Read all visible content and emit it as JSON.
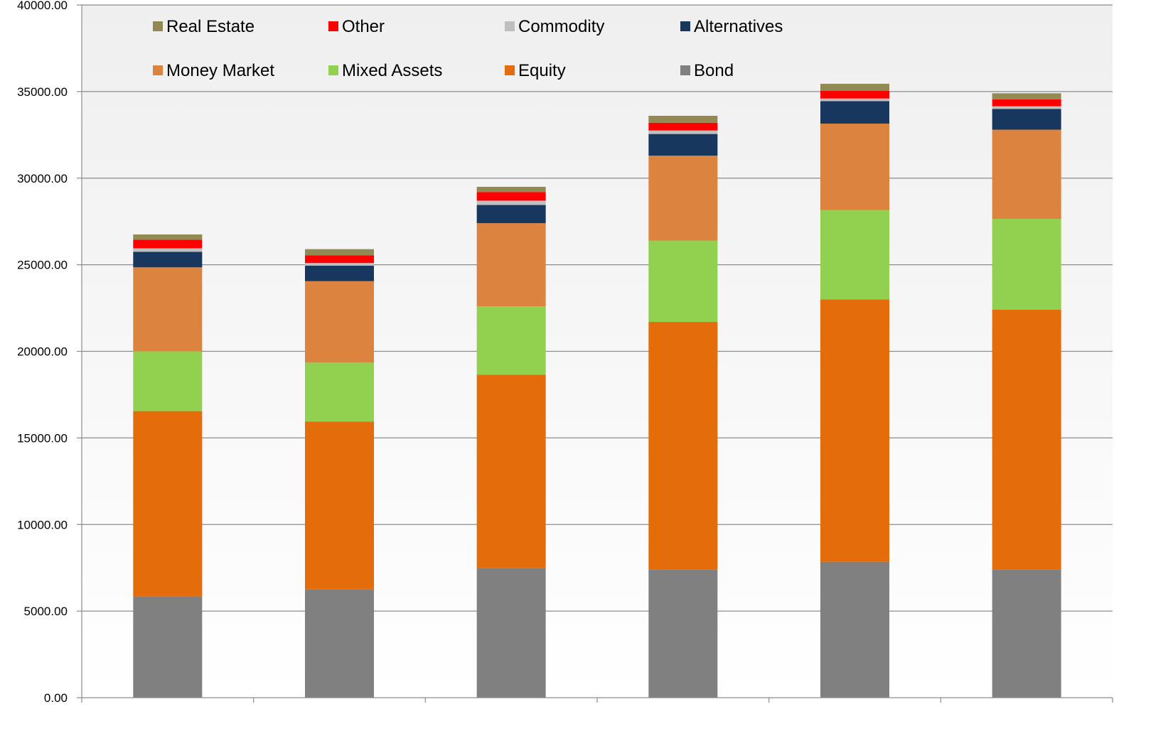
{
  "chart_data": {
    "type": "bar",
    "stacked": true,
    "title": "",
    "xlabel": "",
    "ylabel": "",
    "ylim": [
      0,
      40000
    ],
    "yticks": [
      "0.00",
      "5000.00",
      "10000.00",
      "15000.00",
      "20000.00",
      "25000.00",
      "30000.00",
      "35000.00",
      "40000.00"
    ],
    "grid": true,
    "legend_position": "top, inside plot",
    "categories": [
      "",
      "",
      "",
      "",
      "",
      ""
    ],
    "series": [
      {
        "name": "Bond",
        "color": "#808080",
        "values": [
          5850,
          6250,
          7500,
          7400,
          7850,
          7400
        ]
      },
      {
        "name": "Equity",
        "color": "#E46C0A",
        "values": [
          10700,
          9700,
          11150,
          14300,
          15150,
          15000
        ]
      },
      {
        "name": "Mixed Assets",
        "color": "#92D050",
        "values": [
          3450,
          3400,
          3950,
          4700,
          5150,
          5250
        ]
      },
      {
        "name": "Money Market",
        "color": "#DC843F",
        "values": [
          4850,
          4700,
          4800,
          4900,
          5000,
          5150
        ]
      },
      {
        "name": "Alternatives",
        "color": "#17375E",
        "values": [
          900,
          900,
          1050,
          1250,
          1300,
          1200
        ]
      },
      {
        "name": "Commodity",
        "color": "#BFBFBF",
        "values": [
          200,
          150,
          250,
          200,
          150,
          150
        ]
      },
      {
        "name": "Other",
        "color": "#FF0000",
        "values": [
          500,
          450,
          500,
          450,
          450,
          400
        ]
      },
      {
        "name": "Real Estate",
        "color": "#938953",
        "values": [
          300,
          350,
          300,
          400,
          400,
          350
        ]
      }
    ],
    "legend_order": [
      "Real Estate",
      "Other",
      "Commodity",
      "Alternatives",
      "Money Market",
      "Mixed Assets",
      "Equity",
      "Bond"
    ]
  }
}
